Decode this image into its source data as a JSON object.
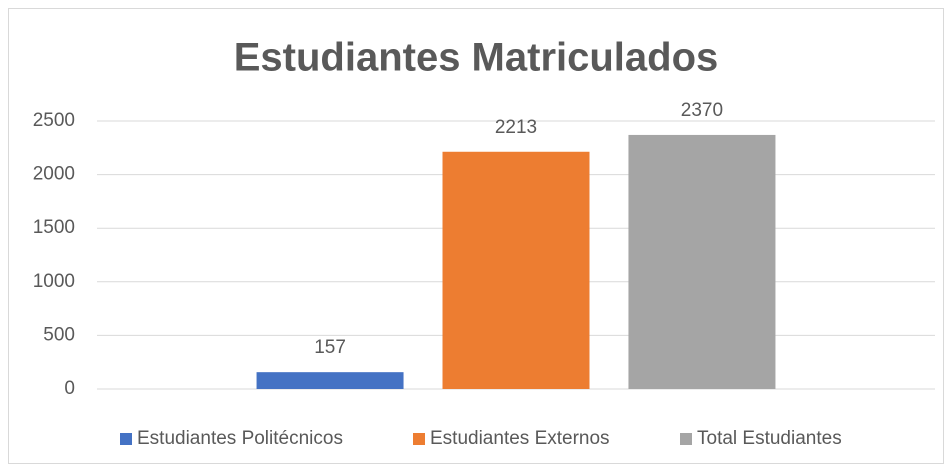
{
  "chart_data": {
    "type": "bar",
    "title": "Estudiantes Matriculados",
    "categories": [
      null
    ],
    "series": [
      {
        "name": "Estudiantes Politécnicos",
        "color": "#4472c4",
        "values": [
          157
        ]
      },
      {
        "name": "Estudiantes Externos",
        "color": "#ed7d31",
        "values": [
          2213
        ]
      },
      {
        "name": "Total Estudiantes",
        "color": "#a5a5a5",
        "values": [
          2370
        ]
      }
    ],
    "ylim": [
      0,
      2500
    ],
    "yticks": [
      0,
      500,
      1000,
      1500,
      2000,
      2500
    ],
    "grid": true,
    "legend": "bottom"
  }
}
